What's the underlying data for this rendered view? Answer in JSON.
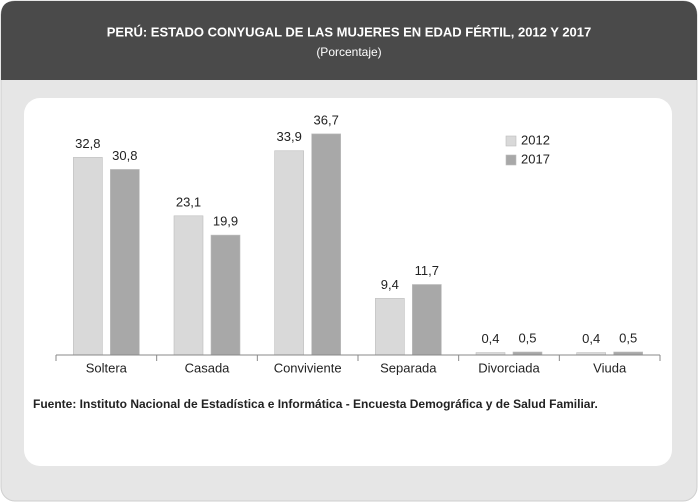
{
  "chart_data": {
    "type": "bar",
    "title": "PERÚ: ESTADO CONYUGAL DE LAS MUJERES EN EDAD FÉRTIL, 2012 Y 2017",
    "subtitle": "(Porcentaje)",
    "categories": [
      "Soltera",
      "Casada",
      "Conviviente",
      "Separada",
      "Divorciada",
      "Viuda"
    ],
    "series": [
      {
        "name": "2012",
        "color": "#d9d9d9",
        "values": [
          32.8,
          23.1,
          33.9,
          9.4,
          0.4,
          0.4
        ],
        "value_labels": [
          "32,8",
          "23,1",
          "33,9",
          "9,4",
          "0,4",
          "0,4"
        ]
      },
      {
        "name": "2017",
        "color": "#a8a8a8",
        "values": [
          30.8,
          19.9,
          36.7,
          11.7,
          0.5,
          0.5
        ],
        "value_labels": [
          "30,8",
          "19,9",
          "36,7",
          "11,7",
          "0,5",
          "0,5"
        ]
      }
    ],
    "ylim": [
      0,
      40
    ],
    "legend": "upper right",
    "source": "Fuente: Instituto Nacional de Estadística e Informática - Encuesta Demográfica y de Salud Familiar."
  }
}
